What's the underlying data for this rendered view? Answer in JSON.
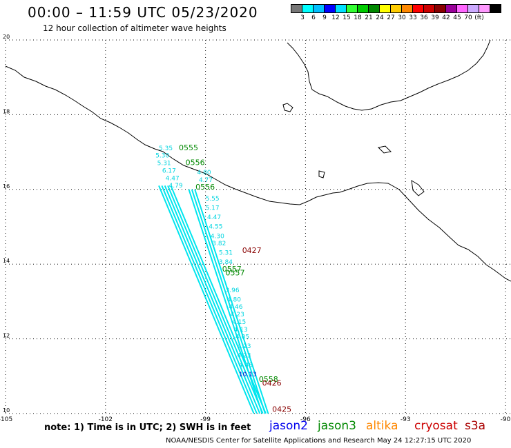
{
  "title": "00:00 – 11:59 UTC 05/23/2020",
  "subtitle": "12 hour collection of altimeter wave heights",
  "colorbar": {
    "colors": [
      "#777777",
      "#00ffff",
      "#00bfff",
      "#0000ff",
      "#00e0ff",
      "#33ff33",
      "#00cc00",
      "#008800",
      "#ffff00",
      "#ffcc00",
      "#ff8800",
      "#ff0000",
      "#cc0000",
      "#880000",
      "#990099",
      "#ff66ff",
      "#ccaaff",
      "#ff99ff",
      "#000000"
    ],
    "labels": [
      "3",
      "6",
      "9",
      "12",
      "15",
      "18",
      "21",
      "24",
      "27",
      "30",
      "33",
      "36",
      "39",
      "42",
      "45",
      "70",
      "(ft)"
    ]
  },
  "map": {
    "lat_labels": [
      "20",
      "18",
      "16",
      "14",
      "12",
      "10"
    ],
    "lon_labels": [
      "-105",
      "-102",
      "-99",
      "-96",
      "-93",
      "-90"
    ],
    "track_color": "#00e5ee"
  },
  "track_labels": [
    {
      "text": "5.35",
      "lat": 17.05,
      "lon": -100.4,
      "color": "cyan"
    },
    {
      "text": "5.30",
      "lat": 16.85,
      "lon": -100.5,
      "color": "cyan"
    },
    {
      "text": "5.31",
      "lat": 16.65,
      "lon": -100.45,
      "color": "cyan"
    },
    {
      "text": "6.17",
      "lat": 16.45,
      "lon": -100.3,
      "color": "cyan"
    },
    {
      "text": "4.47",
      "lat": 16.25,
      "lon": -100.2,
      "color": "cyan"
    },
    {
      "text": "4.79",
      "lat": 16.05,
      "lon": -100.1,
      "color": "cyan"
    },
    {
      "text": "4.80",
      "lat": 16.4,
      "lon": -99.25,
      "color": "cyan"
    },
    {
      "text": "4.77",
      "lat": 16.2,
      "lon": -99.2,
      "color": "cyan"
    },
    {
      "text": "5.55",
      "lat": 15.7,
      "lon": -99.0,
      "color": "cyan"
    },
    {
      "text": "5.17",
      "lat": 15.45,
      "lon": -99.0,
      "color": "cyan"
    },
    {
      "text": "4.47",
      "lat": 15.2,
      "lon": -98.95,
      "color": "cyan"
    },
    {
      "text": "4.55",
      "lat": 14.95,
      "lon": -98.9,
      "color": "cyan"
    },
    {
      "text": "4.30",
      "lat": 14.7,
      "lon": -98.85,
      "color": "cyan"
    },
    {
      "text": "3.82",
      "lat": 14.5,
      "lon": -98.8,
      "color": "cyan"
    },
    {
      "text": "5.31",
      "lat": 14.25,
      "lon": -98.6,
      "color": "cyan"
    },
    {
      "text": "3.84",
      "lat": 14.0,
      "lon": -98.6,
      "color": "cyan"
    },
    {
      "text": "3.96",
      "lat": 13.25,
      "lon": -98.4,
      "color": "cyan"
    },
    {
      "text": "4.80",
      "lat": 13.0,
      "lon": -98.35,
      "color": "cyan"
    },
    {
      "text": "4.46",
      "lat": 12.8,
      "lon": -98.3,
      "color": "cyan"
    },
    {
      "text": "4.23",
      "lat": 12.6,
      "lon": -98.25,
      "color": "cyan"
    },
    {
      "text": "4.15",
      "lat": 12.4,
      "lon": -98.2,
      "color": "cyan"
    },
    {
      "text": "4.13",
      "lat": 12.2,
      "lon": -98.15,
      "color": "cyan"
    },
    {
      "text": "4.05",
      "lat": 12.0,
      "lon": -98.1,
      "color": "cyan"
    },
    {
      "text": "4.23",
      "lat": 11.75,
      "lon": -98.05,
      "color": "cyan"
    },
    {
      "text": "4.23",
      "lat": 11.5,
      "lon": -98.05,
      "color": "cyan"
    },
    {
      "text": "4.46",
      "lat": 11.25,
      "lon": -98.0,
      "color": "cyan"
    },
    {
      "text": "10.13",
      "lat": 11.0,
      "lon": -98.0,
      "color": "blue"
    },
    {
      "text": "0555",
      "lat": 17.05,
      "lon": -99.8,
      "color": "green"
    },
    {
      "text": "0556",
      "lat": 16.65,
      "lon": -99.6,
      "color": "green"
    },
    {
      "text": "0556",
      "lat": 16.0,
      "lon": -99.3,
      "color": "green"
    },
    {
      "text": "0557",
      "lat": 13.8,
      "lon": -98.5,
      "color": "green"
    },
    {
      "text": "0557",
      "lat": 13.7,
      "lon": -98.4,
      "color": "green"
    },
    {
      "text": "0427",
      "lat": 14.3,
      "lon": -97.9,
      "color": "darkred"
    },
    {
      "text": "0558",
      "lat": 10.85,
      "lon": -97.4,
      "color": "green"
    },
    {
      "text": "0426",
      "lat": 10.75,
      "lon": -97.3,
      "color": "darkred"
    },
    {
      "text": "0425",
      "lat": 10.05,
      "lon": -97.0,
      "color": "darkred"
    }
  ],
  "note": "note: 1) Time is in UTC; 2) SWH is in feet",
  "missions": [
    {
      "name": "jason2",
      "color": "#0000ee"
    },
    {
      "name": "jason3",
      "color": "#008800"
    },
    {
      "name": "altika",
      "color": "#ff8800"
    },
    {
      "name": "cryosat",
      "color": "#cc0000"
    },
    {
      "name": "s3a",
      "color": "#aa0000"
    }
  ],
  "footer": "NOAA/NESDIS Center for Satellite Applications and Research     May 24 12:27:15 UTC 2020"
}
